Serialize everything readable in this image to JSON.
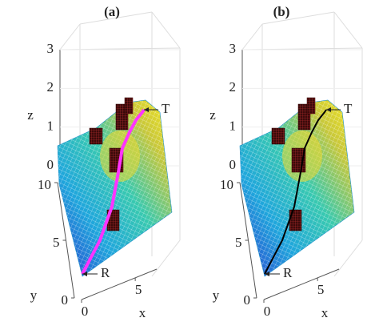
{
  "chart_data": [
    {
      "type": "surface3d",
      "title": "(a)",
      "xlabel": "x",
      "ylabel": "y",
      "zlabel": "z",
      "xlim": [
        0,
        7
      ],
      "xticks": [
        0,
        5
      ],
      "ylim": [
        0,
        10
      ],
      "yticks": [
        0,
        5,
        10
      ],
      "zlim": [
        0,
        3
      ],
      "zticks": [
        0,
        1,
        2,
        3
      ],
      "path_color": "#ff33ff",
      "annotations": [
        "R",
        "T"
      ]
    },
    {
      "type": "surface3d",
      "title": "(b)",
      "xlabel": "x",
      "ylabel": "y",
      "zlabel": "z",
      "xlim": [
        0,
        7
      ],
      "xticks": [
        0,
        5
      ],
      "ylim": [
        0,
        10
      ],
      "yticks": [
        0,
        5,
        10
      ],
      "zlim": [
        0,
        3
      ],
      "zticks": [
        0,
        1,
        2,
        3
      ],
      "path_color": "#000000",
      "annotations": [
        "R",
        "T"
      ]
    }
  ]
}
